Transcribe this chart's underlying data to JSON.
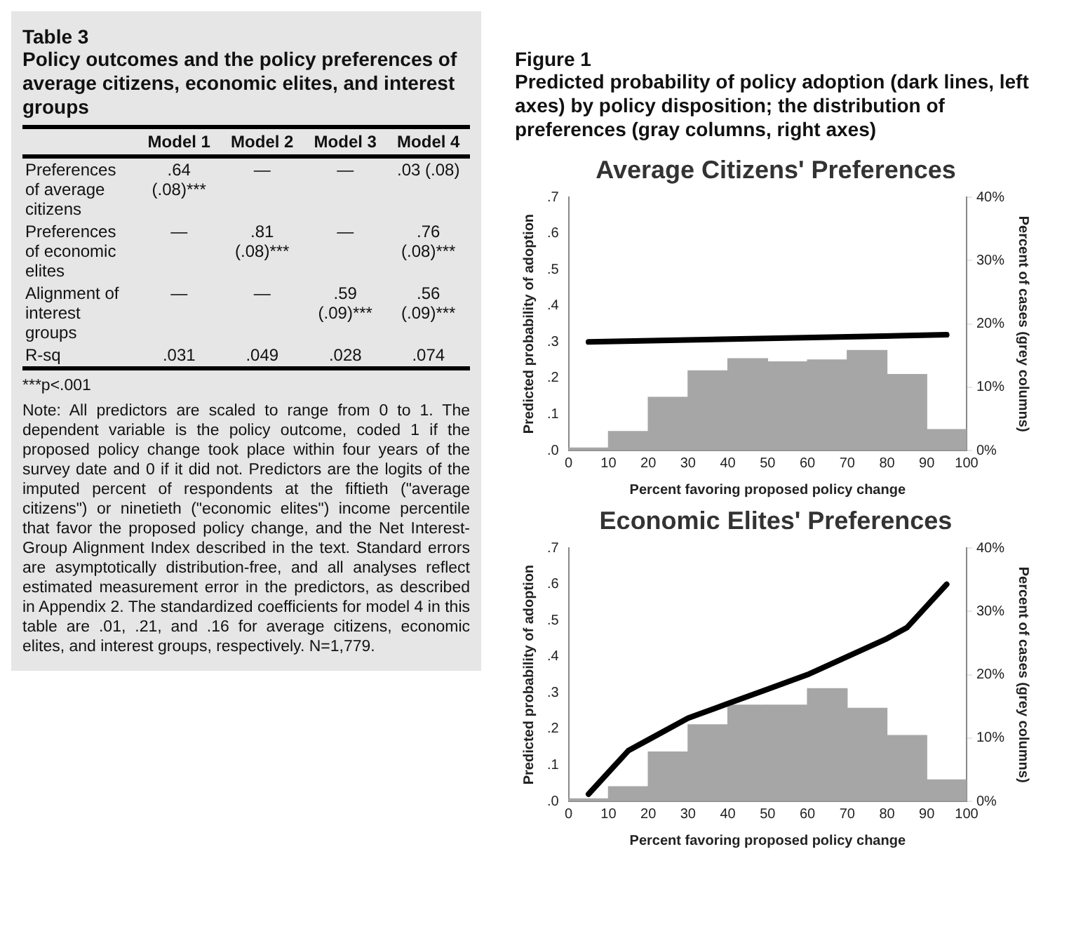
{
  "chart_data": [
    {
      "type": "other",
      "title": "Table 3",
      "subtitle": "Policy outcomes and the policy preferences of average citizens, economic elites, and interest groups",
      "categories": [
        "Model 1",
        "Model 2",
        "Model 3",
        "Model 4"
      ],
      "y_categories": [
        "Preferences of average citizens",
        "Preferences of economic elites",
        "Alignment of interest groups",
        "R-sq"
      ],
      "cell_labels": [
        [
          ".64 (.08)***",
          "—",
          "—",
          ".03 (.08)"
        ],
        [
          "—",
          ".81 (.08)***",
          "—",
          ".76 (.08)***"
        ],
        [
          "—",
          "—",
          ".59 (.09)***",
          ".56 (.09)***"
        ],
        [
          ".031",
          ".049",
          ".028",
          ".074"
        ]
      ],
      "annotations": [
        "***p<.001",
        "Note: All predictors are scaled to range from 0 to 1. The dependent variable is the policy outcome, coded 1 if the proposed policy change took place within four years of the survey date and 0 if it did not. Predictors are the logits of the imputed percent of respondents at the fiftieth (\"average citizens\") or ninetieth (\"economic elites\") income percentile that favor the proposed policy change, and the Net Interest-Group Alignment Index described in the text. Standard errors are asymptotically distribution-free, and all analyses reflect estimated measurement error in the predictors, as described in Appendix 2. The standardized coefficients for model 4 in this table are .01, .21, and .16 for average citizens, economic elites, and interest groups, respectively. N=1,779."
      ]
    },
    {
      "type": "other",
      "title": "Figure 1",
      "subtitle": "Predicted probability of policy adoption (dark lines, left axes) by policy disposition; the distribution of preferences (gray columns, right axes)"
    },
    {
      "type": "bar",
      "title": "Average Citizens' Preferences",
      "xlabel": "Percent favoring proposed policy change",
      "ylabel": "Predicted probability of adoption",
      "y2label": "Percent of cases (grey columns)",
      "xlim": [
        0,
        100
      ],
      "xticks": [
        0,
        10,
        20,
        30,
        40,
        50,
        60,
        70,
        80,
        90,
        100
      ],
      "ylim": [
        0,
        0.7
      ],
      "yticks": [
        {
          "value": 0,
          "label": ".0"
        },
        {
          "value": 0.1,
          "label": ".1"
        },
        {
          "value": 0.2,
          "label": ".2"
        },
        {
          "value": 0.3,
          "label": ".3"
        },
        {
          "value": 0.4,
          "label": ".4"
        },
        {
          "value": 0.5,
          "label": ".5"
        },
        {
          "value": 0.6,
          "label": ".6"
        },
        {
          "value": 0.7,
          "label": ".7"
        }
      ],
      "y2lim": [
        0,
        40
      ],
      "y2ticks": [
        {
          "value": 0,
          "label": "0%"
        },
        {
          "value": 10,
          "label": "10%"
        },
        {
          "value": 20,
          "label": "20%"
        },
        {
          "value": 30,
          "label": "30%"
        },
        {
          "value": 40,
          "label": "40%"
        }
      ],
      "series": [
        {
          "type": "bar",
          "axis": "y2",
          "color": "#a6a6a6",
          "x": [
            5,
            15,
            25,
            35,
            45,
            55,
            65,
            75,
            85,
            95
          ],
          "values": [
            0.4,
            3.0,
            8.4,
            12.6,
            14.5,
            14.0,
            14.3,
            15.8,
            12.0,
            3.3
          ]
        },
        {
          "type": "line",
          "axis": "y",
          "color": "#000000",
          "x": [
            5,
            50,
            95
          ],
          "values": [
            0.3,
            0.31,
            0.32
          ]
        }
      ]
    },
    {
      "type": "bar",
      "title": "Economic Elites' Preferences",
      "xlabel": "Percent favoring proposed policy change",
      "ylabel": "Predicted probability of adoption",
      "y2label": "Percent of cases (grey columns)",
      "xlim": [
        0,
        100
      ],
      "xticks": [
        0,
        10,
        20,
        30,
        40,
        50,
        60,
        70,
        80,
        90,
        100
      ],
      "ylim": [
        0,
        0.7
      ],
      "yticks": [
        {
          "value": 0,
          "label": ".0"
        },
        {
          "value": 0.1,
          "label": ".1"
        },
        {
          "value": 0.2,
          "label": ".2"
        },
        {
          "value": 0.3,
          "label": ".3"
        },
        {
          "value": 0.4,
          "label": ".4"
        },
        {
          "value": 0.5,
          "label": ".5"
        },
        {
          "value": 0.6,
          "label": ".6"
        },
        {
          "value": 0.7,
          "label": ".7"
        }
      ],
      "y2lim": [
        0,
        40
      ],
      "y2ticks": [
        {
          "value": 0,
          "label": "0%"
        },
        {
          "value": 10,
          "label": "10%"
        },
        {
          "value": 20,
          "label": "20%"
        },
        {
          "value": 30,
          "label": "30%"
        },
        {
          "value": 40,
          "label": "40%"
        }
      ],
      "series": [
        {
          "type": "bar",
          "axis": "y2",
          "color": "#a6a6a6",
          "x": [
            5,
            15,
            25,
            35,
            45,
            55,
            65,
            75,
            85,
            95
          ],
          "values": [
            0.4,
            2.3,
            7.8,
            12.1,
            15.2,
            15.2,
            17.8,
            14.7,
            10.4,
            3.4
          ]
        },
        {
          "type": "line",
          "axis": "y",
          "color": "#000000",
          "x": [
            5,
            10,
            15,
            20,
            30,
            40,
            50,
            60,
            70,
            80,
            85,
            90,
            95
          ],
          "values": [
            0.02,
            0.08,
            0.14,
            0.17,
            0.23,
            0.27,
            0.31,
            0.35,
            0.4,
            0.45,
            0.48,
            0.54,
            0.6
          ]
        }
      ]
    }
  ]
}
